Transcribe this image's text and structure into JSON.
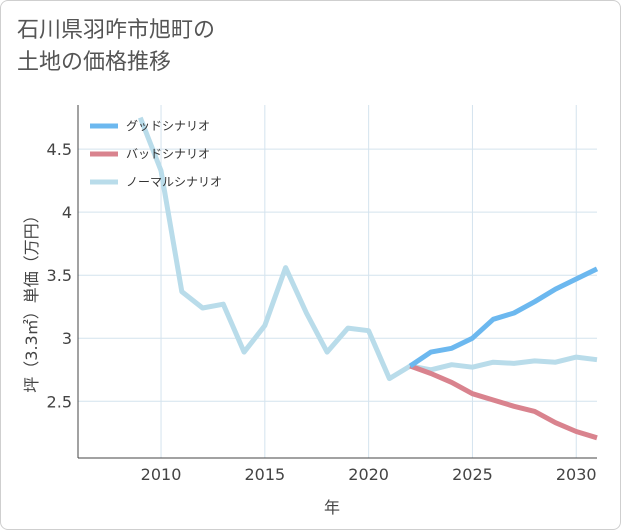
{
  "title_lines": [
    "石川県羽咋市旭町の",
    "土地の価格推移"
  ],
  "colors": {
    "good": "#6cb8ef",
    "bad": "#d9838e",
    "normal": "#b9dcea",
    "grid": "#d4e3ee",
    "axis": "#444444"
  },
  "chart_data": {
    "type": "line",
    "title": "石川県羽咋市旭町の土地の価格推移",
    "xlabel": "年",
    "ylabel": "坪（3.3㎡）単価（万円）",
    "xlim": [
      2006,
      2031
    ],
    "ylim": [
      2.05,
      4.85
    ],
    "xticks": [
      2010,
      2015,
      2020,
      2025,
      2030
    ],
    "yticks": [
      2.5,
      3,
      3.5,
      4,
      4.5
    ],
    "ytick_labels": [
      "2.5",
      "3",
      "3.5",
      "4",
      "4.5"
    ],
    "grid": true,
    "legend_position": "top-left",
    "series": [
      {
        "name": "グッドシナリオ",
        "color_key": "good",
        "x": [
          2022,
          2023,
          2024,
          2025,
          2026,
          2027,
          2028,
          2029,
          2030,
          2031
        ],
        "y": [
          2.78,
          2.89,
          2.92,
          3.0,
          3.15,
          3.2,
          3.29,
          3.39,
          3.47,
          3.55
        ]
      },
      {
        "name": "バッドシナリオ",
        "color_key": "bad",
        "x": [
          2022,
          2023,
          2024,
          2025,
          2026,
          2027,
          2028,
          2029,
          2030,
          2031
        ],
        "y": [
          2.78,
          2.72,
          2.65,
          2.56,
          2.51,
          2.46,
          2.42,
          2.33,
          2.26,
          2.21
        ]
      },
      {
        "name": "ノーマルシナリオ",
        "color_key": "normal",
        "x": [
          2009,
          2010,
          2011,
          2012,
          2013,
          2014,
          2015,
          2016,
          2017,
          2018,
          2019,
          2020,
          2021,
          2022,
          2023,
          2024,
          2025,
          2026,
          2027,
          2028,
          2029,
          2030,
          2031
        ],
        "y": [
          4.75,
          4.33,
          3.37,
          3.24,
          3.27,
          2.89,
          3.1,
          3.56,
          3.2,
          2.89,
          3.08,
          3.06,
          2.68,
          2.78,
          2.75,
          2.79,
          2.77,
          2.81,
          2.8,
          2.82,
          2.81,
          2.85,
          2.83
        ]
      }
    ]
  }
}
